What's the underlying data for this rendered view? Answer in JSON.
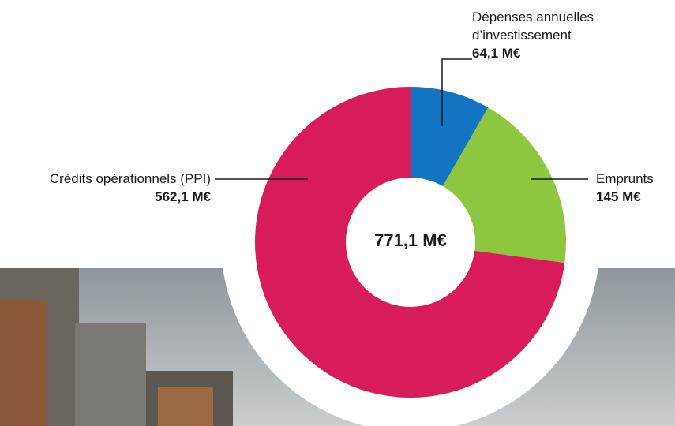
{
  "chart_data": {
    "type": "donut",
    "categories": [
      "Dépenses annuelles d’investissement",
      "Emprunts",
      "Crédits opérationnels (PPI)"
    ],
    "values": [
      64.1,
      145,
      562.1
    ],
    "value_labels": [
      "64,1 M€",
      "145 M€",
      "562,1 M€"
    ],
    "colors": [
      "#1474c4",
      "#8dc63f",
      "#d81b5a"
    ],
    "center_label": "771,1 M€"
  }
}
